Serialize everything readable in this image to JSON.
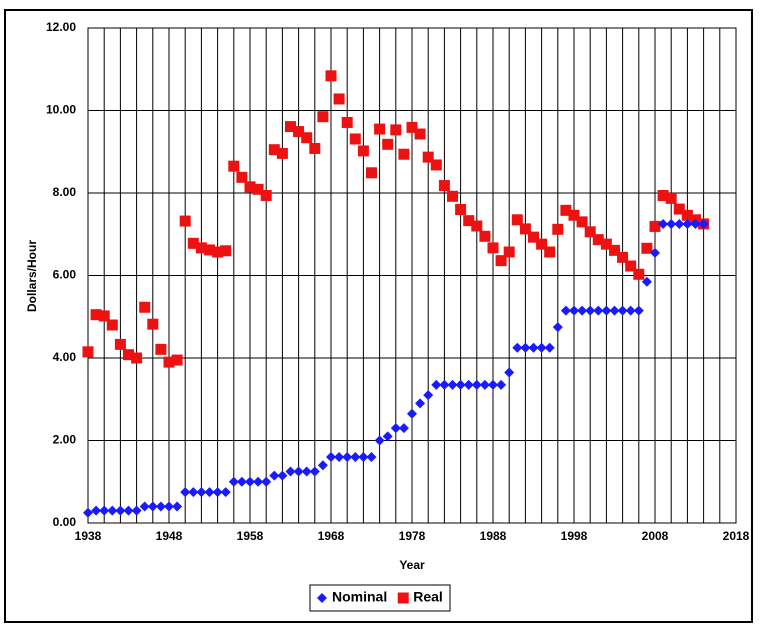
{
  "chart_data": {
    "type": "scatter",
    "x_label": "Year",
    "y_label": "Dollars/Hour",
    "x": [
      1938,
      1939,
      1940,
      1941,
      1942,
      1943,
      1944,
      1945,
      1946,
      1947,
      1948,
      1949,
      1950,
      1951,
      1952,
      1953,
      1954,
      1955,
      1956,
      1957,
      1958,
      1959,
      1960,
      1961,
      1962,
      1963,
      1964,
      1965,
      1966,
      1967,
      1968,
      1969,
      1970,
      1971,
      1972,
      1973,
      1974,
      1975,
      1976,
      1977,
      1978,
      1979,
      1980,
      1981,
      1982,
      1983,
      1984,
      1985,
      1986,
      1987,
      1988,
      1989,
      1990,
      1991,
      1992,
      1993,
      1994,
      1995,
      1996,
      1997,
      1998,
      1999,
      2000,
      2001,
      2002,
      2003,
      2004,
      2005,
      2006,
      2007,
      2008,
      2009,
      2010,
      2011,
      2012,
      2013,
      2014
    ],
    "series": [
      {
        "name": "Nominal",
        "color": "#1a1aff",
        "marker": "diamond",
        "values": [
          0.25,
          0.3,
          0.3,
          0.3,
          0.3,
          0.3,
          0.3,
          0.4,
          0.4,
          0.4,
          0.4,
          0.4,
          0.75,
          0.75,
          0.75,
          0.75,
          0.75,
          0.75,
          1.0,
          1.0,
          1.0,
          1.0,
          1.0,
          1.15,
          1.15,
          1.25,
          1.25,
          1.25,
          1.25,
          1.4,
          1.6,
          1.6,
          1.6,
          1.6,
          1.6,
          1.6,
          2.0,
          2.1,
          2.3,
          2.3,
          2.65,
          2.9,
          3.1,
          3.35,
          3.35,
          3.35,
          3.35,
          3.35,
          3.35,
          3.35,
          3.35,
          3.35,
          3.65,
          4.25,
          4.25,
          4.25,
          4.25,
          4.25,
          4.75,
          5.15,
          5.15,
          5.15,
          5.15,
          5.15,
          5.15,
          5.15,
          5.15,
          5.15,
          5.15,
          5.85,
          6.55,
          7.25,
          7.25,
          7.25,
          7.25,
          7.25,
          7.25
        ]
      },
      {
        "name": "Real",
        "color": "#ee1111",
        "marker": "square",
        "values": [
          4.15,
          5.05,
          5.02,
          4.8,
          4.33,
          4.08,
          4.0,
          5.23,
          4.82,
          4.21,
          3.9,
          3.95,
          7.32,
          6.78,
          6.67,
          6.62,
          6.57,
          6.6,
          8.65,
          8.38,
          8.15,
          8.09,
          7.94,
          9.05,
          8.96,
          9.61,
          9.49,
          9.34,
          9.08,
          9.85,
          10.84,
          10.28,
          9.71,
          9.31,
          9.02,
          8.49,
          9.55,
          9.18,
          9.53,
          8.94,
          9.59,
          9.43,
          8.87,
          8.68,
          8.18,
          7.92,
          7.6,
          7.33,
          7.2,
          6.95,
          6.67,
          6.36,
          6.57,
          7.35,
          7.13,
          6.93,
          6.76,
          6.57,
          7.12,
          7.58,
          7.46,
          7.3,
          7.06,
          6.87,
          6.76,
          6.61,
          6.44,
          6.23,
          6.03,
          6.66,
          7.19,
          7.94,
          7.87,
          7.61,
          7.46,
          7.35,
          7.25
        ]
      }
    ],
    "xlim": [
      1938,
      2018
    ],
    "xticks": [
      1938,
      1948,
      1958,
      1968,
      1978,
      1988,
      1998,
      2008,
      2018
    ],
    "xminorticks": [
      1940,
      1942,
      1944,
      1946,
      1950,
      1952,
      1954,
      1956,
      1960,
      1962,
      1964,
      1966,
      1970,
      1972,
      1974,
      1976,
      1980,
      1982,
      1984,
      1986,
      1990,
      1992,
      1994,
      1996,
      2000,
      2002,
      2004,
      2006,
      2010,
      2012,
      2014,
      2016
    ],
    "ylim": [
      0,
      12
    ],
    "yticks": [
      {
        "value": 0,
        "label": "0.00"
      },
      {
        "value": 2,
        "label": "2.00"
      },
      {
        "value": 4,
        "label": "4.00"
      },
      {
        "value": 6,
        "label": "6.00"
      },
      {
        "value": 8,
        "label": "8.00"
      },
      {
        "value": 10,
        "label": "10.00"
      },
      {
        "value": 12,
        "label": "12.00"
      }
    ],
    "grid": true,
    "legend": "bottom"
  }
}
